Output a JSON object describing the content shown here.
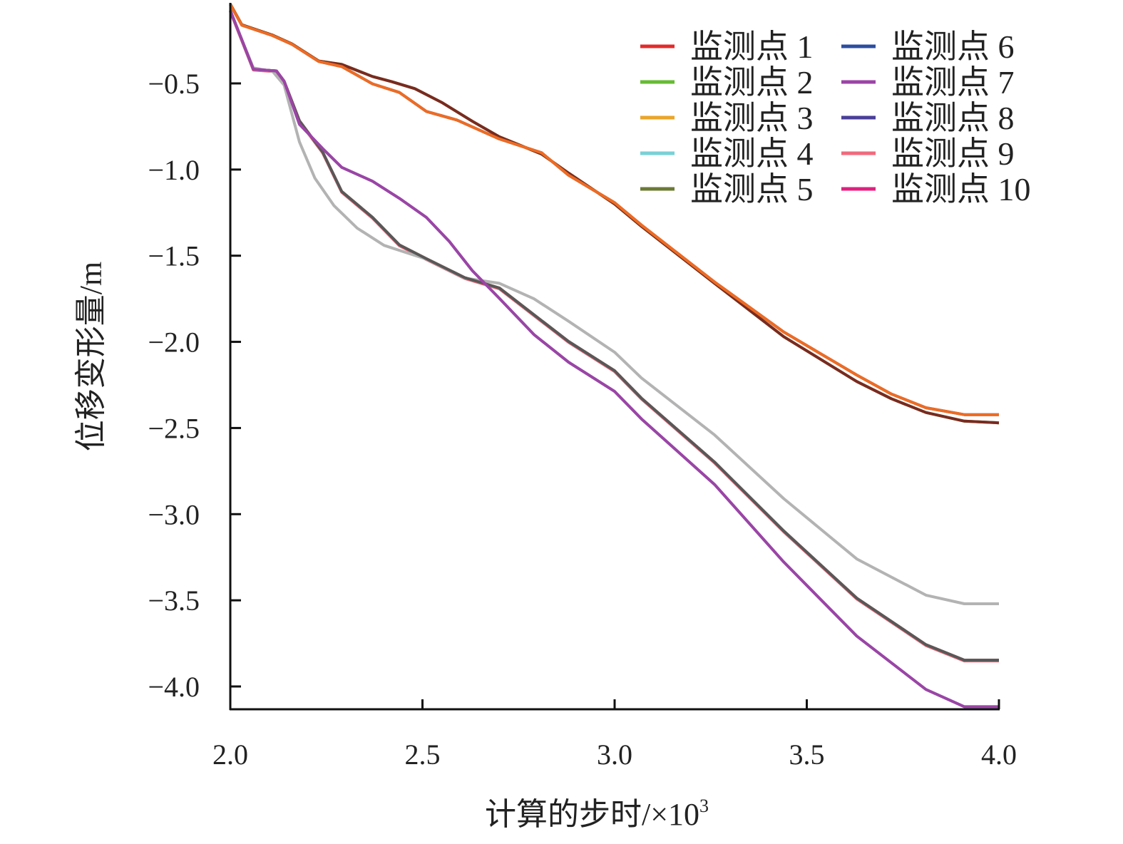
{
  "chart_data": {
    "type": "line",
    "title": "",
    "xlabel": "计算的步时/×10",
    "xlabel_sup": "3",
    "ylabel": "位移变形量/m",
    "xlim": [
      2.0,
      4.0
    ],
    "ylim": [
      -4.13,
      -0.04
    ],
    "xticks": [
      2.0,
      2.5,
      3.0,
      3.5,
      4.0
    ],
    "xtick_labels": [
      "2.0",
      "2.5",
      "3.0",
      "3.5",
      "4.0"
    ],
    "yticks": [
      -0.5,
      -1.0,
      -1.5,
      -2.0,
      -2.5,
      -3.0,
      -3.5,
      -4.0
    ],
    "ytick_labels": [
      "−0.5",
      "−1.0",
      "−1.5",
      "−2.0",
      "−2.5",
      "−3.0",
      "−3.5",
      "−4.0"
    ],
    "grid": false,
    "legend_placement": "top-right",
    "series": [
      {
        "name": "监测点 1",
        "color": "#e32b2b",
        "line_color": "#e32b2b",
        "group": "B2"
      },
      {
        "name": "监测点 2",
        "color": "#66bb33",
        "line_color": "#66bb33",
        "group": "A2"
      },
      {
        "name": "监测点 3",
        "color": "#eaa52a",
        "line_color": "#ee6b22",
        "group": "A1"
      },
      {
        "name": "监测点 4",
        "color": "#79d1d6",
        "line_color": "#79d1d6",
        "group": "B3"
      },
      {
        "name": "监测点 5",
        "color": "#6b7a35",
        "line_color": "#7a2a20",
        "group": "A2"
      },
      {
        "name": "监测点 6",
        "color": "#2c4ea0",
        "line_color": "#2c4ea0",
        "group": "A1"
      },
      {
        "name": "监测点 7",
        "color": "#9c44a6",
        "line_color": "#9c44a6",
        "group": "B3"
      },
      {
        "name": "监测点 8",
        "color": "#4a3f98",
        "line_color": "#b3b3b3",
        "group": "B1"
      },
      {
        "name": "监测点 9",
        "color": "#ef6a7c",
        "line_color": "#ef6a7c",
        "group": "B2"
      },
      {
        "name": "监测点 10",
        "color": "#e0207f",
        "line_color": "#585858",
        "group": "B2"
      }
    ],
    "groups": {
      "A1": {
        "x": [
          2.0,
          2.03,
          2.11,
          2.16,
          2.23,
          2.29,
          2.37,
          2.44,
          2.51,
          2.59,
          2.7,
          2.81,
          2.88,
          3.0,
          3.07,
          3.26,
          3.44,
          3.63,
          3.72,
          3.81,
          3.91,
          4.0
        ],
        "y": [
          -0.04,
          -0.16,
          -0.22,
          -0.27,
          -0.37,
          -0.4,
          -0.5,
          -0.55,
          -0.66,
          -0.71,
          -0.82,
          -0.9,
          -1.03,
          -1.19,
          -1.32,
          -1.65,
          -1.94,
          -2.19,
          -2.3,
          -2.38,
          -2.42,
          -2.42
        ]
      },
      "A2": {
        "x": [
          2.0,
          2.03,
          2.11,
          2.16,
          2.23,
          2.29,
          2.37,
          2.42,
          2.48,
          2.55,
          2.63,
          2.7,
          2.81,
          2.88,
          3.0,
          3.07,
          3.26,
          3.44,
          3.63,
          3.72,
          3.81,
          3.91,
          4.0
        ],
        "y": [
          -0.04,
          -0.16,
          -0.22,
          -0.27,
          -0.37,
          -0.39,
          -0.46,
          -0.49,
          -0.53,
          -0.61,
          -0.72,
          -0.81,
          -0.91,
          -1.02,
          -1.2,
          -1.33,
          -1.66,
          -1.97,
          -2.23,
          -2.33,
          -2.41,
          -2.46,
          -2.47
        ]
      },
      "B1": {
        "x": [
          2.0,
          2.06,
          2.11,
          2.14,
          2.18,
          2.22,
          2.27,
          2.33,
          2.4,
          2.51,
          2.61,
          2.7,
          2.79,
          2.88,
          3.0,
          3.07,
          3.26,
          3.44,
          3.63,
          3.81,
          3.91,
          4.0
        ],
        "y": [
          -0.08,
          -0.41,
          -0.43,
          -0.51,
          -0.84,
          -1.05,
          -1.21,
          -1.34,
          -1.44,
          -1.52,
          -1.63,
          -1.66,
          -1.75,
          -1.88,
          -2.06,
          -2.21,
          -2.54,
          -2.91,
          -3.26,
          -3.47,
          -3.52,
          -3.52
        ]
      },
      "B2": {
        "x": [
          2.0,
          2.06,
          2.12,
          2.14,
          2.18,
          2.24,
          2.29,
          2.37,
          2.44,
          2.51,
          2.61,
          2.7,
          2.88,
          3.0,
          3.07,
          3.26,
          3.44,
          3.63,
          3.81,
          3.91,
          4.0
        ],
        "y": [
          -0.08,
          -0.42,
          -0.43,
          -0.49,
          -0.72,
          -0.9,
          -1.13,
          -1.28,
          -1.44,
          -1.52,
          -1.63,
          -1.69,
          -2.0,
          -2.17,
          -2.33,
          -2.7,
          -3.1,
          -3.49,
          -3.76,
          -3.85,
          -3.85
        ]
      },
      "B3": {
        "x": [
          2.0,
          2.06,
          2.12,
          2.14,
          2.18,
          2.24,
          2.29,
          2.37,
          2.44,
          2.51,
          2.57,
          2.63,
          2.7,
          2.79,
          2.88,
          3.0,
          3.07,
          3.26,
          3.44,
          3.63,
          3.81,
          3.91,
          4.0
        ],
        "y": [
          -0.08,
          -0.42,
          -0.43,
          -0.49,
          -0.74,
          -0.88,
          -0.99,
          -1.07,
          -1.17,
          -1.28,
          -1.42,
          -1.59,
          -1.75,
          -1.96,
          -2.12,
          -2.29,
          -2.45,
          -2.83,
          -3.28,
          -3.71,
          -4.02,
          -4.12,
          -4.12
        ]
      }
    }
  }
}
